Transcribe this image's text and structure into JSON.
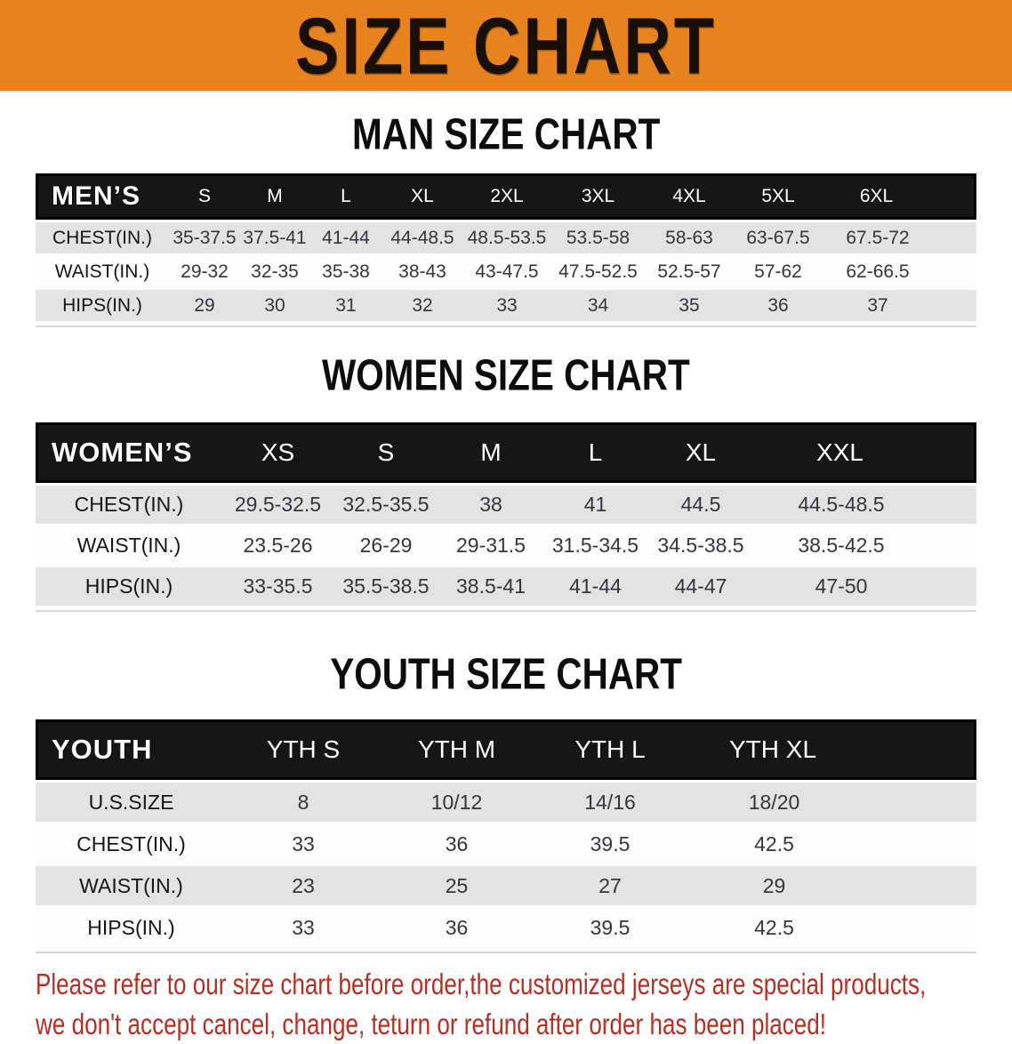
{
  "banner": {
    "title": "SIZE CHART",
    "bg_color": "#E8821F"
  },
  "sections": [
    {
      "heading": "MAN SIZE CHART",
      "table": {
        "header_label": "MEN’S",
        "columns": [
          "S",
          "M",
          "L",
          "XL",
          "2XL",
          "3XL",
          "4XL",
          "5XL",
          "6XL"
        ],
        "rows": [
          {
            "label": "CHEST(IN.)",
            "values": [
              "35-37.5",
              "37.5-41",
              "41-44",
              "44-48.5",
              "48.5-53.5",
              "53.5-58",
              "58-63",
              "63-67.5",
              "67.5-72"
            ]
          },
          {
            "label": "WAIST(IN.)",
            "values": [
              "29-32",
              "32-35",
              "35-38",
              "38-43",
              "43-47.5",
              "47.5-52.5",
              "52.5-57",
              "57-62",
              "62-66.5"
            ]
          },
          {
            "label": "HIPS(IN.)",
            "values": [
              "29",
              "30",
              "31",
              "32",
              "33",
              "34",
              "35",
              "36",
              "37"
            ]
          }
        ]
      }
    },
    {
      "heading": "WOMEN SIZE CHART",
      "table": {
        "header_label": "WOMEN’S",
        "columns": [
          "XS",
          "S",
          "M",
          "L",
          "XL",
          "XXL"
        ],
        "rows": [
          {
            "label": "CHEST(IN.)",
            "values": [
              "29.5-32.5",
              "32.5-35.5",
              "38",
              "41",
              "44.5",
              "44.5-48.5"
            ]
          },
          {
            "label": "WAIST(IN.)",
            "values": [
              "23.5-26",
              "26-29",
              "29-31.5",
              "31.5-34.5",
              "34.5-38.5",
              "38.5-42.5"
            ]
          },
          {
            "label": "HIPS(IN.)",
            "values": [
              "33-35.5",
              "35.5-38.5",
              "38.5-41",
              "41-44",
              "44-47",
              "47-50"
            ]
          }
        ]
      }
    },
    {
      "heading": "YOUTH SIZE CHART",
      "table": {
        "header_label": "YOUTH",
        "columns": [
          "YTH S",
          "YTH M",
          "YTH L",
          "YTH XL"
        ],
        "rows": [
          {
            "label": "U.S.SIZE",
            "values": [
              "8",
              "10/12",
              "14/16",
              "18/20"
            ]
          },
          {
            "label": "CHEST(IN.)",
            "values": [
              "33",
              "36",
              "39.5",
              "42.5"
            ]
          },
          {
            "label": "WAIST(IN.)",
            "values": [
              "23",
              "25",
              "27",
              "29"
            ]
          },
          {
            "label": "HIPS(IN.)",
            "values": [
              "33",
              "36",
              "39.5",
              "42.5"
            ]
          }
        ]
      }
    }
  ],
  "footer_note": {
    "line1": "Please refer to our size chart before order,the customized jerseys are special products,",
    "line2": "we don't accept cancel, change, teturn or refund after order has been placed!",
    "color": "#B23127"
  }
}
